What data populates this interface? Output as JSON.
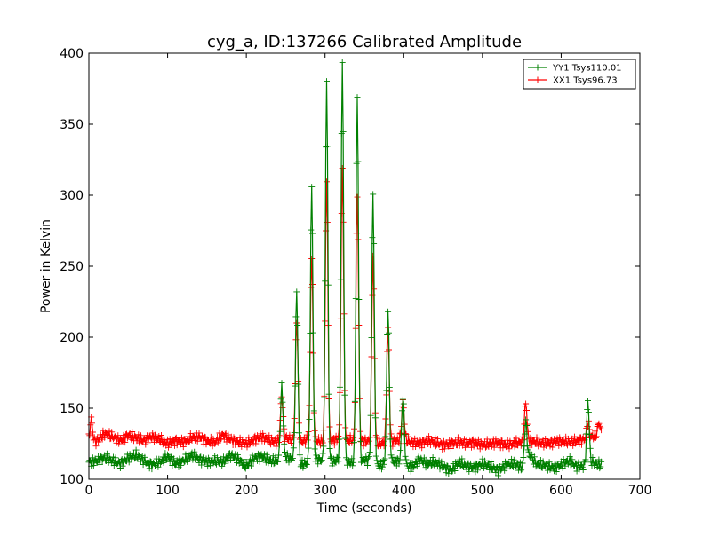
{
  "chart_data": {
    "type": "line",
    "title": "cyg_a, ID:137266 Calibrated Amplitude",
    "xlabel": "Time (seconds)",
    "ylabel": "Power in Kelvin",
    "xlim": [
      0,
      700
    ],
    "ylim": [
      100,
      400
    ],
    "xticks": [
      0,
      100,
      200,
      300,
      400,
      500,
      600,
      700
    ],
    "yticks": [
      100,
      150,
      200,
      250,
      300,
      350,
      400
    ],
    "grid": false,
    "legend_position": "top-right",
    "marker": "plus",
    "series": [
      {
        "name": "YY1 Tsys110.01",
        "color": "#008000",
        "baseline": [
          [
            0,
            112
          ],
          [
            10,
            113
          ],
          [
            20,
            115
          ],
          [
            30,
            113
          ],
          [
            40,
            111
          ],
          [
            50,
            115
          ],
          [
            60,
            117
          ],
          [
            70,
            113
          ],
          [
            80,
            110
          ],
          [
            90,
            112
          ],
          [
            100,
            116
          ],
          [
            110,
            111
          ],
          [
            120,
            113
          ],
          [
            130,
            117
          ],
          [
            140,
            114
          ],
          [
            150,
            112
          ],
          [
            160,
            113
          ],
          [
            170,
            112
          ],
          [
            180,
            117
          ],
          [
            190,
            114
          ],
          [
            200,
            109
          ],
          [
            210,
            115
          ],
          [
            220,
            116
          ],
          [
            230,
            113
          ],
          [
            240,
            113
          ],
          [
            250,
            116
          ],
          [
            260,
            114
          ],
          [
            270,
            110
          ],
          [
            280,
            112
          ],
          [
            290,
            114
          ],
          [
            300,
            113
          ],
          [
            310,
            112
          ],
          [
            320,
            115
          ],
          [
            330,
            112
          ],
          [
            340,
            111
          ],
          [
            350,
            114
          ],
          [
            360,
            112
          ],
          [
            370,
            109
          ],
          [
            380,
            112
          ],
          [
            390,
            113
          ],
          [
            400,
            111
          ],
          [
            410,
            108
          ],
          [
            420,
            114
          ],
          [
            430,
            111
          ],
          [
            440,
            112
          ],
          [
            450,
            109
          ],
          [
            460,
            106
          ],
          [
            470,
            112
          ],
          [
            480,
            109
          ],
          [
            490,
            108
          ],
          [
            500,
            111
          ],
          [
            510,
            109
          ],
          [
            520,
            106
          ],
          [
            530,
            110
          ],
          [
            540,
            111
          ],
          [
            550,
            108
          ],
          [
            560,
            117
          ],
          [
            570,
            110
          ],
          [
            580,
            110
          ],
          [
            590,
            108
          ],
          [
            600,
            110
          ],
          [
            610,
            113
          ],
          [
            620,
            109
          ],
          [
            630,
            109
          ],
          [
            640,
            112
          ],
          [
            650,
            110
          ]
        ],
        "peaks": [
          [
            245,
            165
          ],
          [
            264,
            232
          ],
          [
            283,
            308
          ],
          [
            302,
            382
          ],
          [
            322,
            393
          ],
          [
            341,
            368
          ],
          [
            361,
            302
          ],
          [
            380,
            221
          ],
          [
            399,
            158
          ],
          [
            555,
            140
          ],
          [
            634,
            156
          ]
        ]
      },
      {
        "name": "XX1 Tsys96.73",
        "color": "#ff0000",
        "baseline": [
          [
            0,
            126
          ],
          [
            10,
            127
          ],
          [
            20,
            132
          ],
          [
            30,
            130
          ],
          [
            40,
            127
          ],
          [
            50,
            131
          ],
          [
            60,
            129
          ],
          [
            70,
            127
          ],
          [
            80,
            130
          ],
          [
            90,
            128
          ],
          [
            100,
            125
          ],
          [
            110,
            127
          ],
          [
            120,
            126
          ],
          [
            130,
            129
          ],
          [
            140,
            130
          ],
          [
            150,
            127
          ],
          [
            160,
            126
          ],
          [
            170,
            131
          ],
          [
            180,
            128
          ],
          [
            190,
            126
          ],
          [
            200,
            125
          ],
          [
            210,
            128
          ],
          [
            220,
            130
          ],
          [
            230,
            127
          ],
          [
            240,
            126
          ],
          [
            250,
            129
          ],
          [
            260,
            128
          ],
          [
            270,
            126
          ],
          [
            280,
            129
          ],
          [
            290,
            127
          ],
          [
            300,
            126
          ],
          [
            310,
            127
          ],
          [
            320,
            129
          ],
          [
            330,
            128
          ],
          [
            340,
            126
          ],
          [
            350,
            127
          ],
          [
            360,
            126
          ],
          [
            370,
            125
          ],
          [
            380,
            126
          ],
          [
            390,
            127
          ],
          [
            400,
            128
          ],
          [
            410,
            126
          ],
          [
            420,
            125
          ],
          [
            430,
            127
          ],
          [
            440,
            126
          ],
          [
            450,
            124
          ],
          [
            460,
            125
          ],
          [
            470,
            126
          ],
          [
            480,
            125
          ],
          [
            490,
            126
          ],
          [
            500,
            124
          ],
          [
            510,
            125
          ],
          [
            520,
            126
          ],
          [
            530,
            124
          ],
          [
            540,
            125
          ],
          [
            550,
            126
          ],
          [
            560,
            127
          ],
          [
            570,
            126
          ],
          [
            580,
            125
          ],
          [
            590,
            126
          ],
          [
            600,
            127
          ],
          [
            610,
            126
          ],
          [
            620,
            127
          ],
          [
            630,
            128
          ],
          [
            640,
            130
          ],
          [
            650,
            131
          ]
        ],
        "peaks": [
          [
            3,
            142
          ],
          [
            245,
            158
          ],
          [
            264,
            212
          ],
          [
            283,
            258
          ],
          [
            302,
            310
          ],
          [
            322,
            318
          ],
          [
            341,
            301
          ],
          [
            361,
            256
          ],
          [
            380,
            205
          ],
          [
            399,
            155
          ],
          [
            555,
            154
          ],
          [
            634,
            140
          ],
          [
            648,
            140
          ]
        ]
      }
    ]
  }
}
